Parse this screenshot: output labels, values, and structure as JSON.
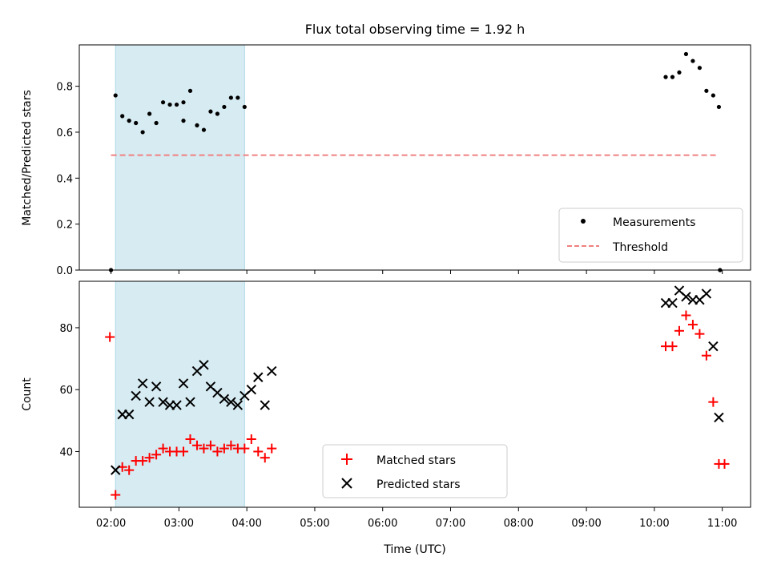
{
  "chart_data": {
    "type": "scatter",
    "title": "Flux total observing time = 1.92 h",
    "xlabel": "Time (UTC)",
    "xticks": [
      "02:00",
      "03:00",
      "04:00",
      "05:00",
      "06:00",
      "07:00",
      "08:00",
      "09:00",
      "10:00",
      "11:00"
    ],
    "xlim": [
      "01:32",
      "11:25"
    ],
    "shaded_interval": [
      "02:04",
      "03:58"
    ],
    "panels": [
      {
        "ylabel": "Matched/Predicted stars",
        "ylim": [
          0,
          0.98
        ],
        "yticks": [
          "0.0",
          "0.2",
          "0.4",
          "0.6",
          "0.8"
        ],
        "legend_position": "lower right",
        "threshold": {
          "name": "Threshold",
          "value": 0.5,
          "x_range": [
            "02:00",
            "10:57"
          ],
          "color": "#f08080",
          "style": "dashed"
        },
        "series": [
          {
            "name": "Measurements",
            "marker": "dot",
            "color": "#000000",
            "points": [
              [
                "02:00",
                0.0
              ],
              [
                "02:04",
                0.76
              ],
              [
                "02:10",
                0.67
              ],
              [
                "02:16",
                0.65
              ],
              [
                "02:22",
                0.64
              ],
              [
                "02:28",
                0.6
              ],
              [
                "02:34",
                0.68
              ],
              [
                "02:40",
                0.64
              ],
              [
                "02:46",
                0.73
              ],
              [
                "02:52",
                0.72
              ],
              [
                "02:58",
                0.72
              ],
              [
                "03:04",
                0.65
              ],
              [
                "03:10",
                0.78
              ],
              [
                "03:16",
                0.63
              ],
              [
                "03:22",
                0.61
              ],
              [
                "03:28",
                0.69
              ],
              [
                "03:34",
                0.68
              ],
              [
                "03:40",
                0.71
              ],
              [
                "03:46",
                0.75
              ],
              [
                "03:52",
                0.75
              ],
              [
                "03:58",
                0.71
              ],
              [
                "03:04",
                0.73
              ],
              [
                "10:10",
                0.84
              ],
              [
                "10:16",
                0.84
              ],
              [
                "10:22",
                0.86
              ],
              [
                "10:28",
                0.94
              ],
              [
                "10:34",
                0.91
              ],
              [
                "10:40",
                0.88
              ],
              [
                "10:46",
                0.78
              ],
              [
                "10:52",
                0.76
              ],
              [
                "10:57",
                0.71
              ],
              [
                "10:58",
                0.0
              ]
            ]
          }
        ]
      },
      {
        "ylabel": "Count",
        "ylim": [
          22,
          95
        ],
        "yticks": [
          "40",
          "60",
          "80"
        ],
        "legend_position": "lower center",
        "series": [
          {
            "name": "Matched stars",
            "marker": "plus",
            "color": "#ff0000",
            "points": [
              [
                "01:59",
                77
              ],
              [
                "02:04",
                26
              ],
              [
                "02:10",
                35
              ],
              [
                "02:16",
                34
              ],
              [
                "02:22",
                37
              ],
              [
                "02:28",
                37
              ],
              [
                "02:34",
                38
              ],
              [
                "02:40",
                39
              ],
              [
                "02:46",
                41
              ],
              [
                "02:52",
                40
              ],
              [
                "02:58",
                40
              ],
              [
                "03:04",
                40
              ],
              [
                "03:10",
                44
              ],
              [
                "03:16",
                42
              ],
              [
                "03:22",
                41
              ],
              [
                "03:28",
                42
              ],
              [
                "03:34",
                40
              ],
              [
                "03:40",
                41
              ],
              [
                "03:46",
                42
              ],
              [
                "03:52",
                41
              ],
              [
                "03:58",
                41
              ],
              [
                "04:04",
                44
              ],
              [
                "04:10",
                40
              ],
              [
                "04:16",
                38
              ],
              [
                "04:22",
                41
              ],
              [
                "10:10",
                74
              ],
              [
                "10:16",
                74
              ],
              [
                "10:22",
                79
              ],
              [
                "10:28",
                84
              ],
              [
                "10:34",
                81
              ],
              [
                "10:40",
                78
              ],
              [
                "10:46",
                71
              ],
              [
                "10:52",
                56
              ],
              [
                "10:57",
                36
              ],
              [
                "11:02",
                36
              ]
            ]
          },
          {
            "name": "Predicted stars",
            "marker": "x",
            "color": "#000000",
            "points": [
              [
                "02:04",
                34
              ],
              [
                "02:10",
                52
              ],
              [
                "02:16",
                52
              ],
              [
                "02:22",
                58
              ],
              [
                "02:28",
                62
              ],
              [
                "02:34",
                56
              ],
              [
                "02:40",
                61
              ],
              [
                "02:46",
                56
              ],
              [
                "02:52",
                55
              ],
              [
                "02:58",
                55
              ],
              [
                "03:04",
                62
              ],
              [
                "03:10",
                56
              ],
              [
                "03:16",
                66
              ],
              [
                "03:22",
                68
              ],
              [
                "03:28",
                61
              ],
              [
                "03:34",
                59
              ],
              [
                "03:40",
                57
              ],
              [
                "03:46",
                56
              ],
              [
                "03:52",
                55
              ],
              [
                "03:58",
                58
              ],
              [
                "04:04",
                60
              ],
              [
                "04:10",
                64
              ],
              [
                "04:16",
                55
              ],
              [
                "04:22",
                66
              ],
              [
                "10:10",
                88
              ],
              [
                "10:16",
                88
              ],
              [
                "10:22",
                92
              ],
              [
                "10:28",
                90
              ],
              [
                "10:34",
                89
              ],
              [
                "10:40",
                89
              ],
              [
                "10:46",
                91
              ],
              [
                "10:52",
                74
              ],
              [
                "10:57",
                51
              ]
            ]
          }
        ]
      }
    ]
  }
}
